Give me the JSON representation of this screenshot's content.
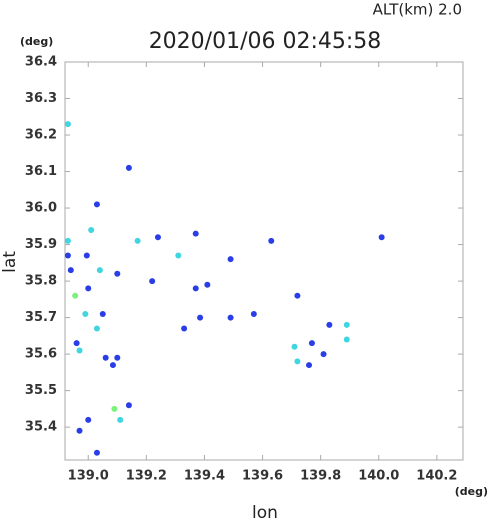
{
  "chart_data": {
    "type": "scatter",
    "title": "2020/01/06 02:45:58",
    "subtitle": "ALT(km)  2.0",
    "x_label": "lon",
    "y_label": "lat",
    "x_unit": "(deg)",
    "y_unit": "(deg)",
    "xlim": [
      138.92,
      140.29
    ],
    "ylim": [
      35.31,
      36.4
    ],
    "xticks": [
      {
        "value": 139.0,
        "label": "139.0"
      },
      139.2,
      139.4,
      139.6,
      139.8,
      {
        "value": 140.0,
        "label": "140.0"
      },
      140.2
    ],
    "yticks": [
      35.4,
      35.5,
      35.6,
      35.7,
      35.8,
      35.9,
      {
        "value": 36.0,
        "label": "36.0"
      },
      36.1,
      36.2,
      36.3,
      36.4
    ],
    "series": [
      {
        "color": "#2a3ee8",
        "x": [
          138.93,
          138.94,
          138.995,
          139.03,
          139.0,
          138.96,
          139.05,
          139.06,
          139.1,
          139.085,
          139.0,
          138.97,
          139.14,
          139.03,
          139.24,
          139.22,
          139.37,
          139.37,
          139.41,
          139.385,
          139.49,
          139.49,
          139.63,
          139.57,
          139.72,
          139.77,
          139.81,
          139.83,
          140.01,
          139.14,
          139.1,
          139.33,
          139.76
        ],
        "y": [
          35.87,
          35.83,
          35.87,
          36.01,
          35.78,
          35.63,
          35.71,
          35.59,
          35.59,
          35.57,
          35.42,
          35.39,
          35.46,
          35.33,
          35.92,
          35.8,
          35.93,
          35.78,
          35.79,
          35.7,
          35.86,
          35.7,
          35.91,
          35.71,
          35.76,
          35.63,
          35.6,
          35.68,
          35.92,
          36.11,
          35.82,
          35.67,
          35.57
        ]
      },
      {
        "color": "#3fd6e0",
        "x": [
          138.93,
          138.93,
          139.01,
          139.04,
          138.99,
          138.97,
          139.03,
          139.11,
          139.17,
          139.31,
          139.71,
          139.72,
          139.89,
          139.89
        ],
        "y": [
          36.23,
          35.91,
          35.94,
          35.83,
          35.71,
          35.61,
          35.67,
          35.42,
          35.91,
          35.87,
          35.62,
          35.58,
          35.68,
          35.64
        ]
      },
      {
        "color": "#7cf07a",
        "x": [
          138.955,
          139.09
        ],
        "y": [
          35.76,
          35.45
        ]
      }
    ]
  }
}
